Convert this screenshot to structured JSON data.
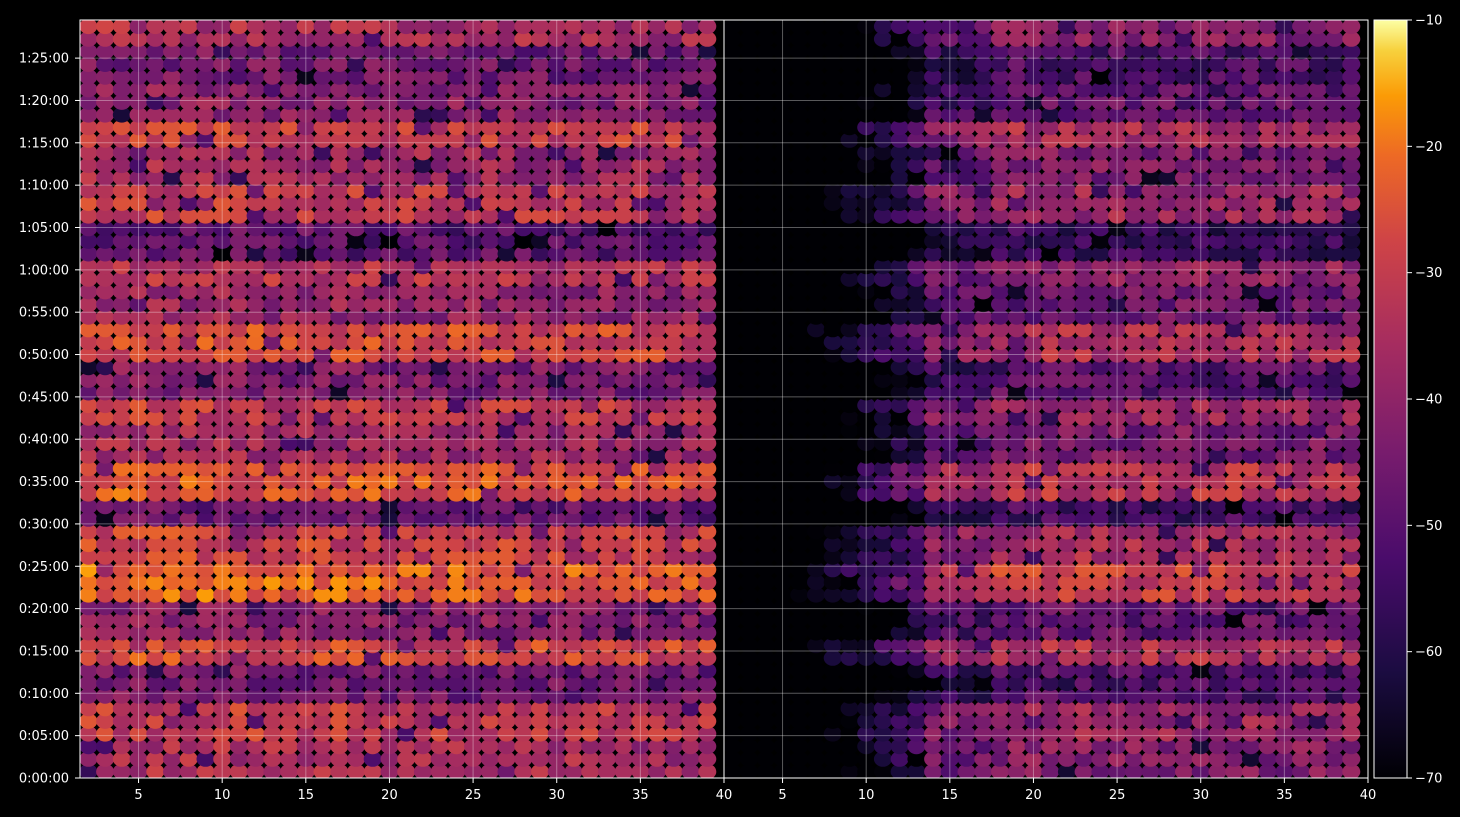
{
  "chart_data": {
    "type": "heatmap",
    "colormap": "inferno",
    "background": "#000000",
    "grid": true,
    "panels": [
      {
        "name": "",
        "xlim": [
          1.5,
          40
        ],
        "xticks": [
          5,
          10,
          15,
          20,
          25,
          30,
          35,
          40
        ],
        "onset_x": 0,
        "band_values": [
          -34,
          -30,
          -44,
          -26,
          -40,
          -22,
          -28,
          -46,
          -24,
          -36,
          -30,
          -42,
          -26,
          -38,
          -32,
          -48,
          -30,
          -36,
          -28,
          -40,
          -44,
          -34
        ]
      },
      {
        "name": "",
        "xlim": [
          1.5,
          40
        ],
        "xticks": [
          5,
          10,
          15,
          20,
          25,
          30,
          35,
          40
        ],
        "onset_x": 14,
        "band_values": [
          -40,
          -36,
          -50,
          -32,
          -46,
          -28,
          -34,
          -52,
          -30,
          -42,
          -36,
          -48,
          -32,
          -44,
          -38,
          -54,
          -36,
          -42,
          -34,
          -46,
          -50,
          -40
        ]
      }
    ],
    "y_axis": {
      "tick_labels": [
        "0:00:00",
        "0:05:00",
        "0:10:00",
        "0:15:00",
        "0:20:00",
        "0:25:00",
        "0:30:00",
        "0:35:00",
        "0:40:00",
        "0:45:00",
        "0:50:00",
        "0:55:00",
        "1:00:00",
        "1:05:00",
        "1:10:00",
        "1:15:00",
        "1:20:00",
        "1:25:00"
      ],
      "tick_seconds": [
        0,
        300,
        600,
        900,
        1200,
        1500,
        1800,
        2100,
        2400,
        2700,
        3000,
        3300,
        3600,
        3900,
        4200,
        4500,
        4800,
        5100
      ],
      "ylim_seconds": [
        0,
        5370
      ]
    },
    "colorbar": {
      "ticks": [
        -10,
        -20,
        -30,
        -40,
        -50,
        -60,
        -70
      ],
      "tick_labels": [
        "−10",
        "−20",
        "−30",
        "−40",
        "−50",
        "−60",
        "−70"
      ],
      "range": [
        -70,
        -10
      ]
    }
  }
}
